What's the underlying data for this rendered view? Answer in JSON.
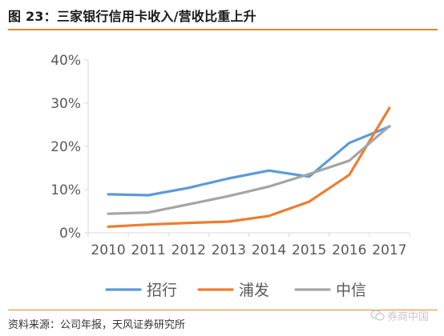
{
  "figure": {
    "title": "图 23：三家银行信用卡收入/营收比重上升",
    "source": "资料来源：公司年报，天风证券研究所",
    "watermark": "券商中国"
  },
  "colors": {
    "title_rule": "#e2862c",
    "axis": "#d9d9d9",
    "招行": "#5b9bd5",
    "浦发": "#ed7d31",
    "中信": "#a5a5a5"
  },
  "chart_data": {
    "type": "line",
    "categories": [
      "2010",
      "2011",
      "2012",
      "2013",
      "2014",
      "2015",
      "2016",
      "2017"
    ],
    "series": [
      {
        "name": "招行",
        "values": [
          8.9,
          8.7,
          10.4,
          12.6,
          14.4,
          13.0,
          20.8,
          24.6
        ]
      },
      {
        "name": "浦发",
        "values": [
          1.4,
          1.9,
          2.3,
          2.6,
          3.9,
          7.2,
          13.4,
          28.9
        ]
      },
      {
        "name": "中信",
        "values": [
          4.4,
          4.7,
          6.6,
          8.5,
          10.7,
          13.6,
          16.7,
          24.7
        ]
      }
    ],
    "ylim": [
      0,
      40
    ],
    "yticks": [
      0,
      10,
      20,
      30,
      40
    ],
    "ytick_labels": [
      "0%",
      "10%",
      "20%",
      "30%",
      "40%"
    ],
    "grid": false,
    "legend_position": "bottom"
  }
}
